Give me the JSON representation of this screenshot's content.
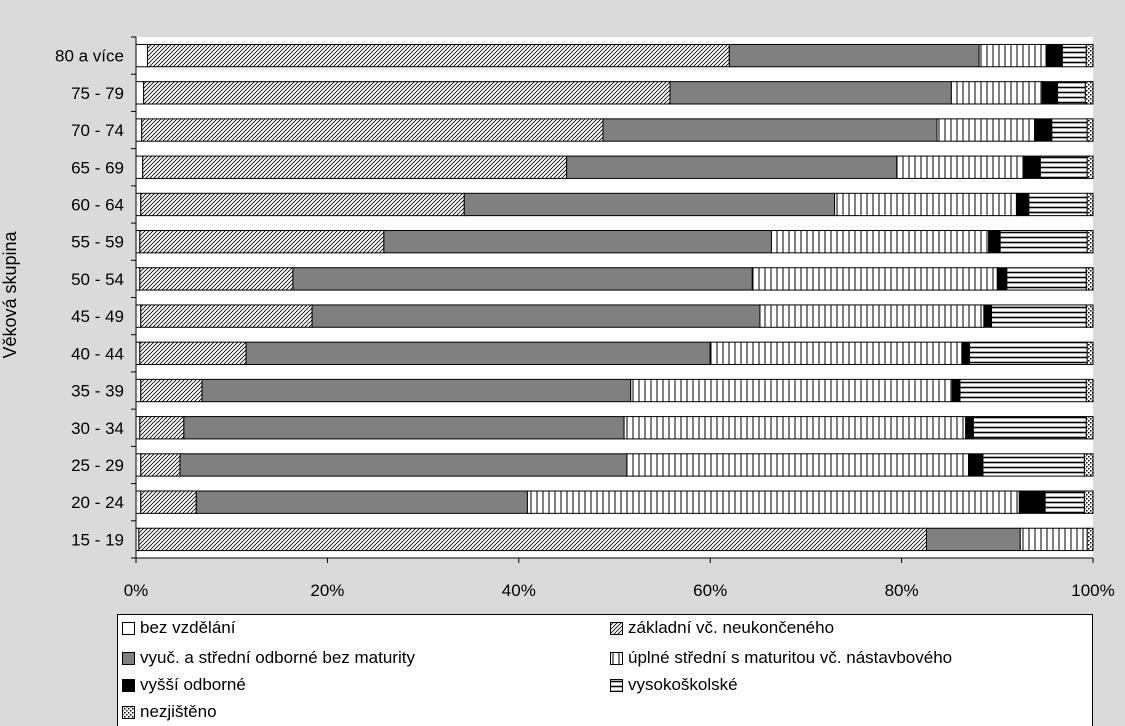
{
  "chart_data": {
    "type": "bar",
    "orientation": "horizontal",
    "stacked": "percent",
    "ylabel": "Věková skupina",
    "xlim": [
      0,
      100
    ],
    "x_ticks": [
      "0%",
      "20%",
      "40%",
      "60%",
      "80%",
      "100%"
    ],
    "grid": false,
    "legend_position": "bottom",
    "categories": [
      "80 a více",
      "75 - 79",
      "70 - 74",
      "65 - 69",
      "60 - 64",
      "55 - 59",
      "50 - 54",
      "45 - 49",
      "40 - 44",
      "35 - 39",
      "30 - 34",
      "25 - 29",
      "20 - 24",
      "15 - 19"
    ],
    "series": [
      {
        "name": "bez vzdělání",
        "pattern": "white",
        "values": [
          1.2,
          0.8,
          0.6,
          0.7,
          0.5,
          0.4,
          0.4,
          0.5,
          0.4,
          0.5,
          0.4,
          0.5,
          0.5,
          0.3
        ]
      },
      {
        "name": "základní vč. neukončeného",
        "pattern": "diag",
        "values": [
          60.8,
          55.0,
          48.2,
          44.3,
          33.8,
          25.5,
          16.0,
          17.9,
          11.1,
          6.4,
          4.6,
          4.1,
          5.8,
          82.3
        ]
      },
      {
        "name": "vyuč. a střední odborné bez maturity",
        "pattern": "gray",
        "values": [
          26.1,
          29.4,
          34.9,
          34.5,
          38.7,
          40.5,
          48.0,
          46.8,
          48.5,
          44.8,
          46.0,
          46.7,
          34.6,
          9.8
        ]
      },
      {
        "name": "úplné střední s maturitou vč. nástavbového",
        "pattern": "vlines",
        "values": [
          7.0,
          9.5,
          10.2,
          13.3,
          19.0,
          22.7,
          25.6,
          23.4,
          26.3,
          33.6,
          35.7,
          35.7,
          51.4,
          7.0
        ]
      },
      {
        "name": "vyšší odborné",
        "pattern": "black",
        "values": [
          1.7,
          1.6,
          1.8,
          1.7,
          1.3,
          1.2,
          1.0,
          0.8,
          0.8,
          0.8,
          0.8,
          1.5,
          2.7,
          0.0
        ]
      },
      {
        "name": "vysokoškolské",
        "pattern": "hlines",
        "values": [
          2.5,
          2.9,
          3.7,
          4.9,
          6.1,
          9.1,
          8.3,
          9.9,
          12.3,
          13.2,
          11.8,
          10.6,
          4.1,
          0.0
        ]
      },
      {
        "name": "nezjištěno",
        "pattern": "dots",
        "values": [
          0.7,
          0.8,
          0.6,
          0.6,
          0.6,
          0.6,
          0.7,
          0.7,
          0.6,
          0.7,
          0.7,
          0.9,
          0.9,
          0.6
        ]
      }
    ]
  }
}
